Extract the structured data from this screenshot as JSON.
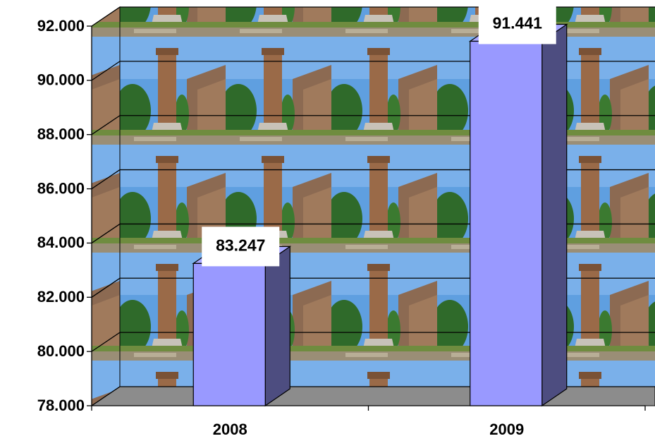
{
  "chart_data": {
    "type": "bar3d",
    "categories": [
      "2008",
      "2009"
    ],
    "values": [
      83247,
      91441
    ],
    "value_labels": [
      "83.247",
      "91.441"
    ],
    "color": "#9999ff",
    "ylim": [
      78000,
      92000
    ],
    "yticks": [
      {
        "value": 78000,
        "label": "78.000"
      },
      {
        "value": 80000,
        "label": "80.000"
      },
      {
        "value": 82000,
        "label": "82.000"
      },
      {
        "value": 84000,
        "label": "84.000"
      },
      {
        "value": 86000,
        "label": "86.000"
      },
      {
        "value": 88000,
        "label": "88.000"
      },
      {
        "value": 90000,
        "label": "90.000"
      },
      {
        "value": 92000,
        "label": "92.000"
      }
    ],
    "grid": true
  }
}
